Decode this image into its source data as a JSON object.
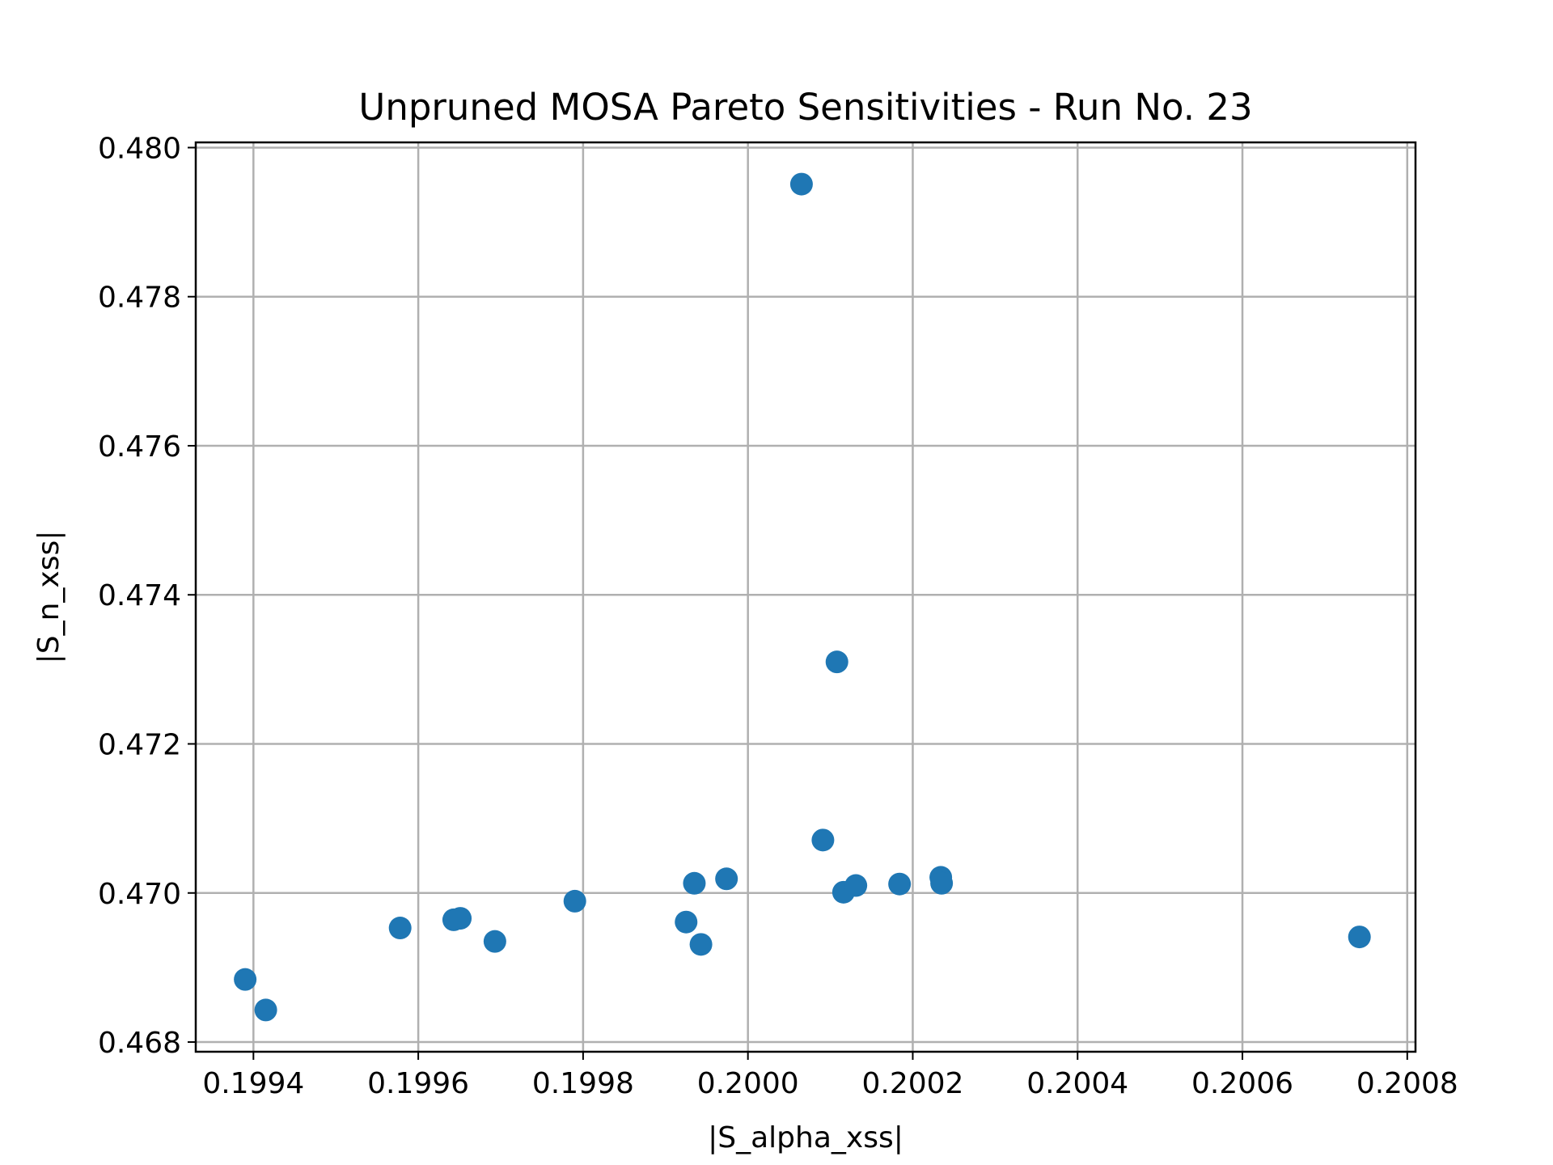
{
  "chart_data": {
    "type": "scatter",
    "title": "Unpruned MOSA Pareto Sensitivities - Run No. 23",
    "xlabel": "|S_alpha_xss|",
    "ylabel": "|S_n_xss|",
    "xlim": [
      0.19933,
      0.20081
    ],
    "ylim": [
      0.46787,
      0.48007
    ],
    "xticks": [
      0.1994,
      0.1996,
      0.1998,
      0.2,
      0.2002,
      0.2004,
      0.2006,
      0.2008
    ],
    "xtick_labels": [
      "0.1994",
      "0.1996",
      "0.1998",
      "0.2000",
      "0.2002",
      "0.2004",
      "0.2006",
      "0.2008"
    ],
    "yticks": [
      0.468,
      0.47,
      0.472,
      0.474,
      0.476,
      0.478,
      0.48
    ],
    "ytick_labels": [
      "0.468",
      "0.470",
      "0.472",
      "0.474",
      "0.476",
      "0.478",
      "0.480"
    ],
    "grid": true,
    "marker_color": "#1f77b4",
    "series": [
      {
        "x": [
          0.19939,
          0.199415,
          0.199578,
          0.199643,
          0.199651,
          0.199693,
          0.19979,
          0.199925,
          0.199935,
          0.199943,
          0.199974,
          0.200065,
          0.200091,
          0.200108,
          0.200116,
          0.200131,
          0.200184,
          0.200234,
          0.200235,
          0.200742
        ],
        "y": [
          0.46884,
          0.46843,
          0.46953,
          0.46964,
          0.46966,
          0.46935,
          0.46989,
          0.46961,
          0.47013,
          0.46931,
          0.47019,
          0.47951,
          0.47071,
          0.4731,
          0.47001,
          0.4701,
          0.47012,
          0.47021,
          0.47013,
          0.46941
        ]
      }
    ]
  }
}
